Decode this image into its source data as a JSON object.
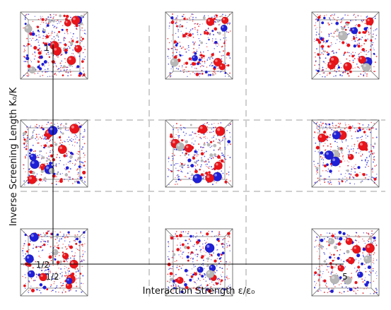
{
  "figure": {
    "x_axis_label": "Interaction Strength ε/ε₀",
    "y_axis_label": "Inverse Screening Length K₀/K",
    "x_tick_labels": [
      "1/2",
      "5"
    ],
    "y_tick_labels": [
      "1/2",
      "1"
    ],
    "grid": {
      "rows": 3,
      "columns": 3
    },
    "colors": {
      "positive": "#e8141a",
      "negative": "#1f1fd6",
      "neutral": "#b7b7b7",
      "dashed_lines": "#cfcfcf",
      "box_edges": "#555555"
    },
    "panels": [
      {
        "row": 0,
        "col": 0,
        "particles": 70,
        "seed": 11
      },
      {
        "row": 0,
        "col": 1,
        "particles": 55,
        "seed": 23
      },
      {
        "row": 0,
        "col": 2,
        "particles": 60,
        "seed": 37
      },
      {
        "row": 1,
        "col": 0,
        "particles": 70,
        "seed": 41
      },
      {
        "row": 1,
        "col": 1,
        "particles": 45,
        "seed": 53
      },
      {
        "row": 1,
        "col": 2,
        "particles": 35,
        "seed": 67
      },
      {
        "row": 2,
        "col": 0,
        "particles": 50,
        "seed": 71
      },
      {
        "row": 2,
        "col": 1,
        "particles": 60,
        "seed": 83
      },
      {
        "row": 2,
        "col": 2,
        "particles": 45,
        "seed": 97
      }
    ]
  }
}
